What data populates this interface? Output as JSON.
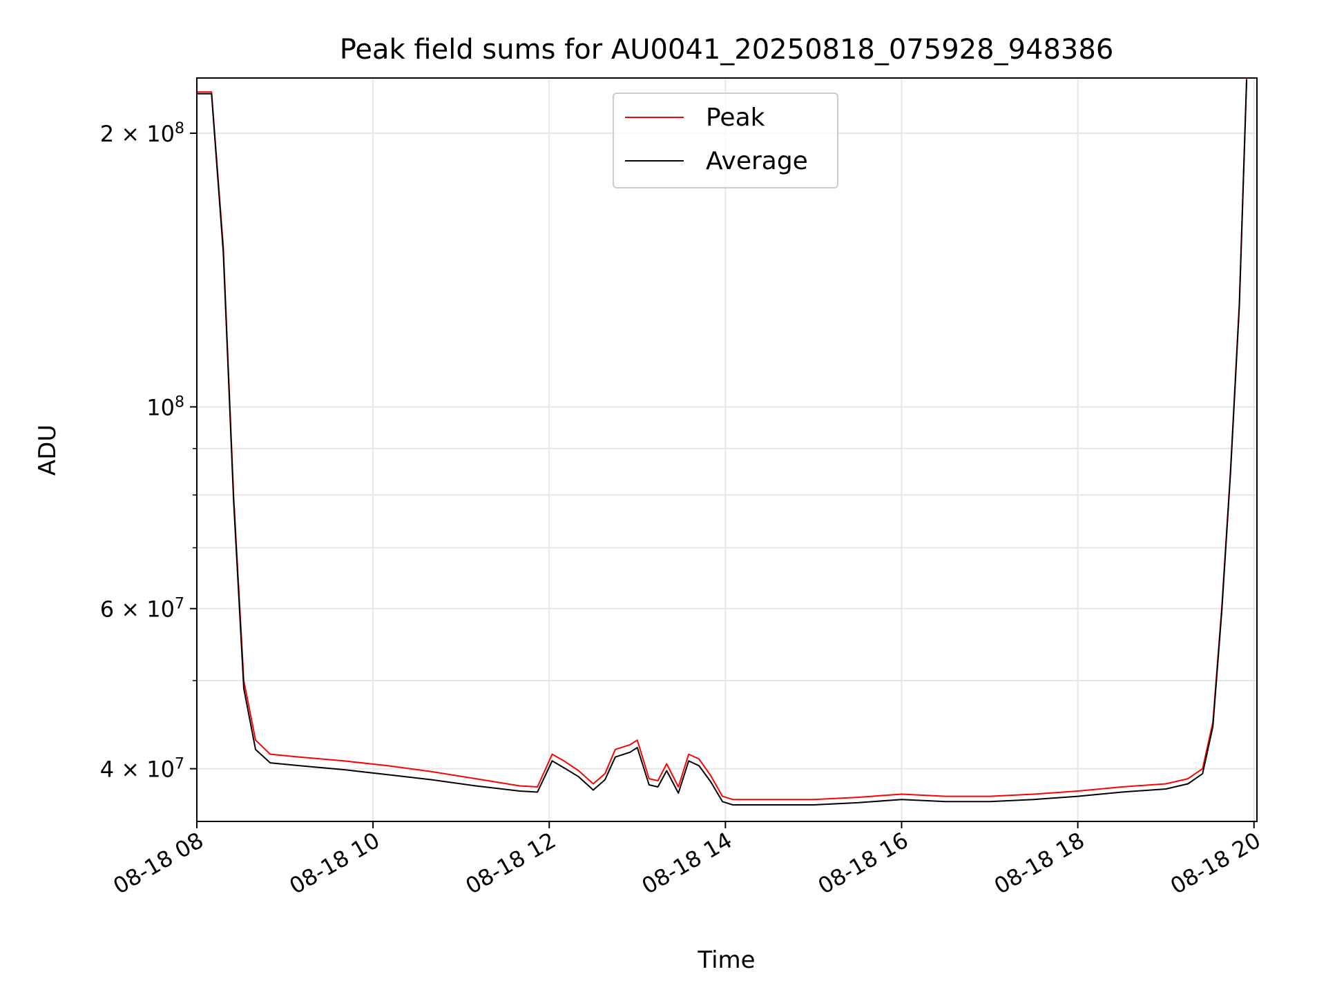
{
  "chart_data": {
    "type": "line",
    "title": "Peak field sums for AU0041_20250818_075928_948386",
    "xlabel": "Time",
    "ylabel": "ADU",
    "y_scale": "log",
    "grid": true,
    "legend_position": "top-center",
    "xlim": [
      "2025-08-18 08:00",
      "2025-08-18 20:02"
    ],
    "ylim": [
      35000000,
      230000000
    ],
    "x_ticks": [
      "2025-08-18 08:00",
      "2025-08-18 10:00",
      "2025-08-18 12:00",
      "2025-08-18 14:00",
      "2025-08-18 16:00",
      "2025-08-18 18:00",
      "2025-08-18 20:00"
    ],
    "x_tick_labels": [
      "08-18 08",
      "08-18 10",
      "08-18 12",
      "08-18 14",
      "08-18 16",
      "08-18 18",
      "08-18 20"
    ],
    "y_ticks": [
      {
        "value": 40000000,
        "mantissa": "4",
        "exponent": "7"
      },
      {
        "value": 60000000,
        "mantissa": "6",
        "exponent": "7"
      },
      {
        "value": 100000000,
        "mantissa": "",
        "exponent": "8"
      },
      {
        "value": 200000000,
        "mantissa": "2",
        "exponent": "8"
      }
    ],
    "y_minor_ticks": [
      50000000,
      70000000,
      80000000,
      90000000
    ],
    "series": [
      {
        "name": "Peak",
        "color": "#ff0000",
        "x": [
          "2025-08-18 08:00",
          "2025-08-18 08:05",
          "2025-08-18 08:10",
          "2025-08-18 08:18",
          "2025-08-18 08:25",
          "2025-08-18 08:32",
          "2025-08-18 08:40",
          "2025-08-18 08:50",
          "2025-08-18 09:10",
          "2025-08-18 09:40",
          "2025-08-18 10:10",
          "2025-08-18 10:40",
          "2025-08-18 11:10",
          "2025-08-18 11:40",
          "2025-08-18 11:52",
          "2025-08-18 12:02",
          "2025-08-18 12:10",
          "2025-08-18 12:20",
          "2025-08-18 12:30",
          "2025-08-18 12:38",
          "2025-08-18 12:45",
          "2025-08-18 12:55",
          "2025-08-18 13:00",
          "2025-08-18 13:08",
          "2025-08-18 13:14",
          "2025-08-18 13:20",
          "2025-08-18 13:28",
          "2025-08-18 13:35",
          "2025-08-18 13:42",
          "2025-08-18 13:50",
          "2025-08-18 13:58",
          "2025-08-18 14:05",
          "2025-08-18 14:30",
          "2025-08-18 15:00",
          "2025-08-18 15:30",
          "2025-08-18 16:00",
          "2025-08-18 16:30",
          "2025-08-18 17:00",
          "2025-08-18 17:30",
          "2025-08-18 18:00",
          "2025-08-18 18:30",
          "2025-08-18 19:00",
          "2025-08-18 19:15",
          "2025-08-18 19:25",
          "2025-08-18 19:32",
          "2025-08-18 19:38",
          "2025-08-18 19:44",
          "2025-08-18 19:50",
          "2025-08-18 19:55"
        ],
        "y": [
          222000000,
          222000000,
          222000000,
          150000000,
          80000000,
          50000000,
          43000000,
          41500000,
          41200000,
          40800000,
          40300000,
          39700000,
          39000000,
          38300000,
          38200000,
          41500000,
          40800000,
          39800000,
          38500000,
          39500000,
          42000000,
          42500000,
          43000000,
          39000000,
          38800000,
          40500000,
          38200000,
          41500000,
          41000000,
          39300000,
          37300000,
          37000000,
          37000000,
          37000000,
          37200000,
          37500000,
          37300000,
          37300000,
          37500000,
          37800000,
          38200000,
          38500000,
          39000000,
          40000000,
          45000000,
          60000000,
          85000000,
          130000000,
          230000000
        ]
      },
      {
        "name": "Average",
        "color": "#000000",
        "x": [
          "2025-08-18 08:00",
          "2025-08-18 08:05",
          "2025-08-18 08:10",
          "2025-08-18 08:18",
          "2025-08-18 08:25",
          "2025-08-18 08:32",
          "2025-08-18 08:40",
          "2025-08-18 08:50",
          "2025-08-18 09:10",
          "2025-08-18 09:40",
          "2025-08-18 10:10",
          "2025-08-18 10:40",
          "2025-08-18 11:10",
          "2025-08-18 11:40",
          "2025-08-18 11:52",
          "2025-08-18 12:02",
          "2025-08-18 12:10",
          "2025-08-18 12:20",
          "2025-08-18 12:30",
          "2025-08-18 12:38",
          "2025-08-18 12:45",
          "2025-08-18 12:55",
          "2025-08-18 13:00",
          "2025-08-18 13:08",
          "2025-08-18 13:14",
          "2025-08-18 13:20",
          "2025-08-18 13:28",
          "2025-08-18 13:35",
          "2025-08-18 13:42",
          "2025-08-18 13:50",
          "2025-08-18 13:58",
          "2025-08-18 14:05",
          "2025-08-18 14:30",
          "2025-08-18 15:00",
          "2025-08-18 15:30",
          "2025-08-18 16:00",
          "2025-08-18 16:30",
          "2025-08-18 17:00",
          "2025-08-18 17:30",
          "2025-08-18 18:00",
          "2025-08-18 18:30",
          "2025-08-18 19:00",
          "2025-08-18 19:15",
          "2025-08-18 19:25",
          "2025-08-18 19:32",
          "2025-08-18 19:38",
          "2025-08-18 19:44",
          "2025-08-18 19:50",
          "2025-08-18 19:55"
        ],
        "y": [
          221000000,
          221000000,
          221000000,
          148000000,
          79000000,
          49000000,
          42000000,
          40600000,
          40300000,
          39900000,
          39400000,
          38900000,
          38300000,
          37800000,
          37700000,
          40800000,
          40100000,
          39200000,
          37900000,
          38900000,
          41200000,
          41700000,
          42200000,
          38400000,
          38200000,
          39800000,
          37600000,
          40800000,
          40300000,
          38700000,
          36800000,
          36500000,
          36500000,
          36500000,
          36700000,
          37000000,
          36800000,
          36800000,
          37000000,
          37300000,
          37700000,
          38000000,
          38500000,
          39500000,
          44500000,
          59500000,
          84500000,
          129000000,
          229000000
        ]
      }
    ]
  }
}
